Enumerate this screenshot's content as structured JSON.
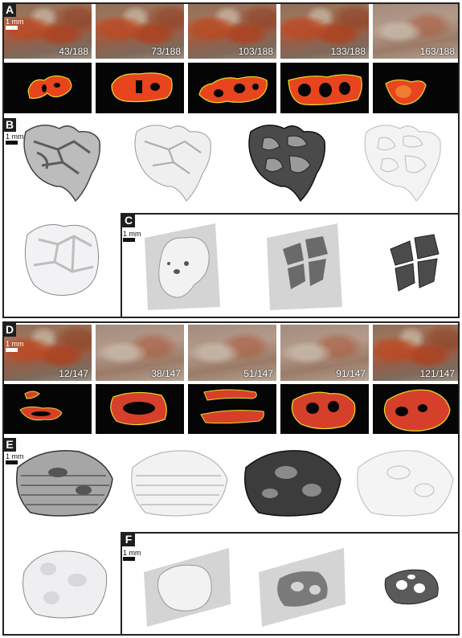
{
  "panel_labels": {
    "a": "A",
    "b": "B",
    "c": "C",
    "d": "D",
    "e": "E",
    "f": "F"
  },
  "scale_label": "1 mm",
  "slices_top": [
    "43/188",
    "73/188",
    "103/188",
    "133/188",
    "163/188"
  ],
  "slices_bottom": [
    "12/147",
    "38/147",
    "51/147",
    "91/147",
    "121/147"
  ],
  "colors": {
    "segmentation_fill": "#e8451e",
    "segmentation_outline": "#e9dc2a",
    "segmentation_background": "#050505",
    "panel_border": "#222222"
  }
}
